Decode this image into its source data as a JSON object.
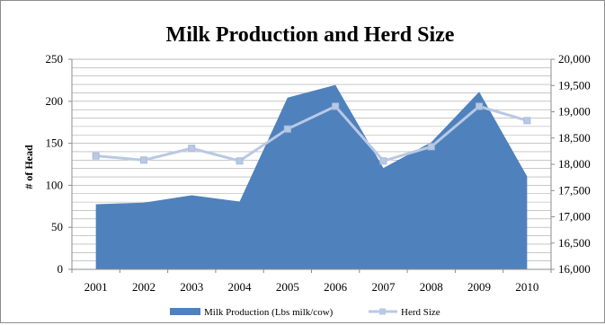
{
  "chart_data": {
    "type": "area",
    "title": "Milk Production and Herd Size",
    "xlabel": "",
    "ylabel": "# of Head",
    "y2label": "",
    "categories": [
      "2001",
      "2002",
      "2003",
      "2004",
      "2005",
      "2006",
      "2007",
      "2008",
      "2009",
      "2010"
    ],
    "ylim": [
      0,
      250
    ],
    "yticks": [
      0,
      50,
      100,
      150,
      200,
      250
    ],
    "y2lim": [
      16000,
      20000
    ],
    "y2ticks": [
      16000,
      16500,
      17000,
      17500,
      18000,
      18500,
      19000,
      19500,
      20000
    ],
    "y2tick_labels": [
      "16,000",
      "16,500",
      "17,000",
      "17,500",
      "18,000",
      "18,500",
      "19,000",
      "19,500",
      "20,000"
    ],
    "grid": true,
    "legend_position": "bottom",
    "series": [
      {
        "name": "Milk Production (Lbs milk/cow)",
        "type": "area",
        "axis": "right",
        "color": "#4f81bd",
        "values": [
          17240,
          17270,
          17410,
          17290,
          19270,
          19510,
          17930,
          18420,
          19380,
          17770
        ]
      },
      {
        "name": "Herd Size",
        "type": "line",
        "axis": "left",
        "color": "#b9c9e3",
        "values": [
          135,
          130,
          144,
          129,
          167,
          194,
          129,
          146,
          194,
          177
        ]
      }
    ]
  }
}
